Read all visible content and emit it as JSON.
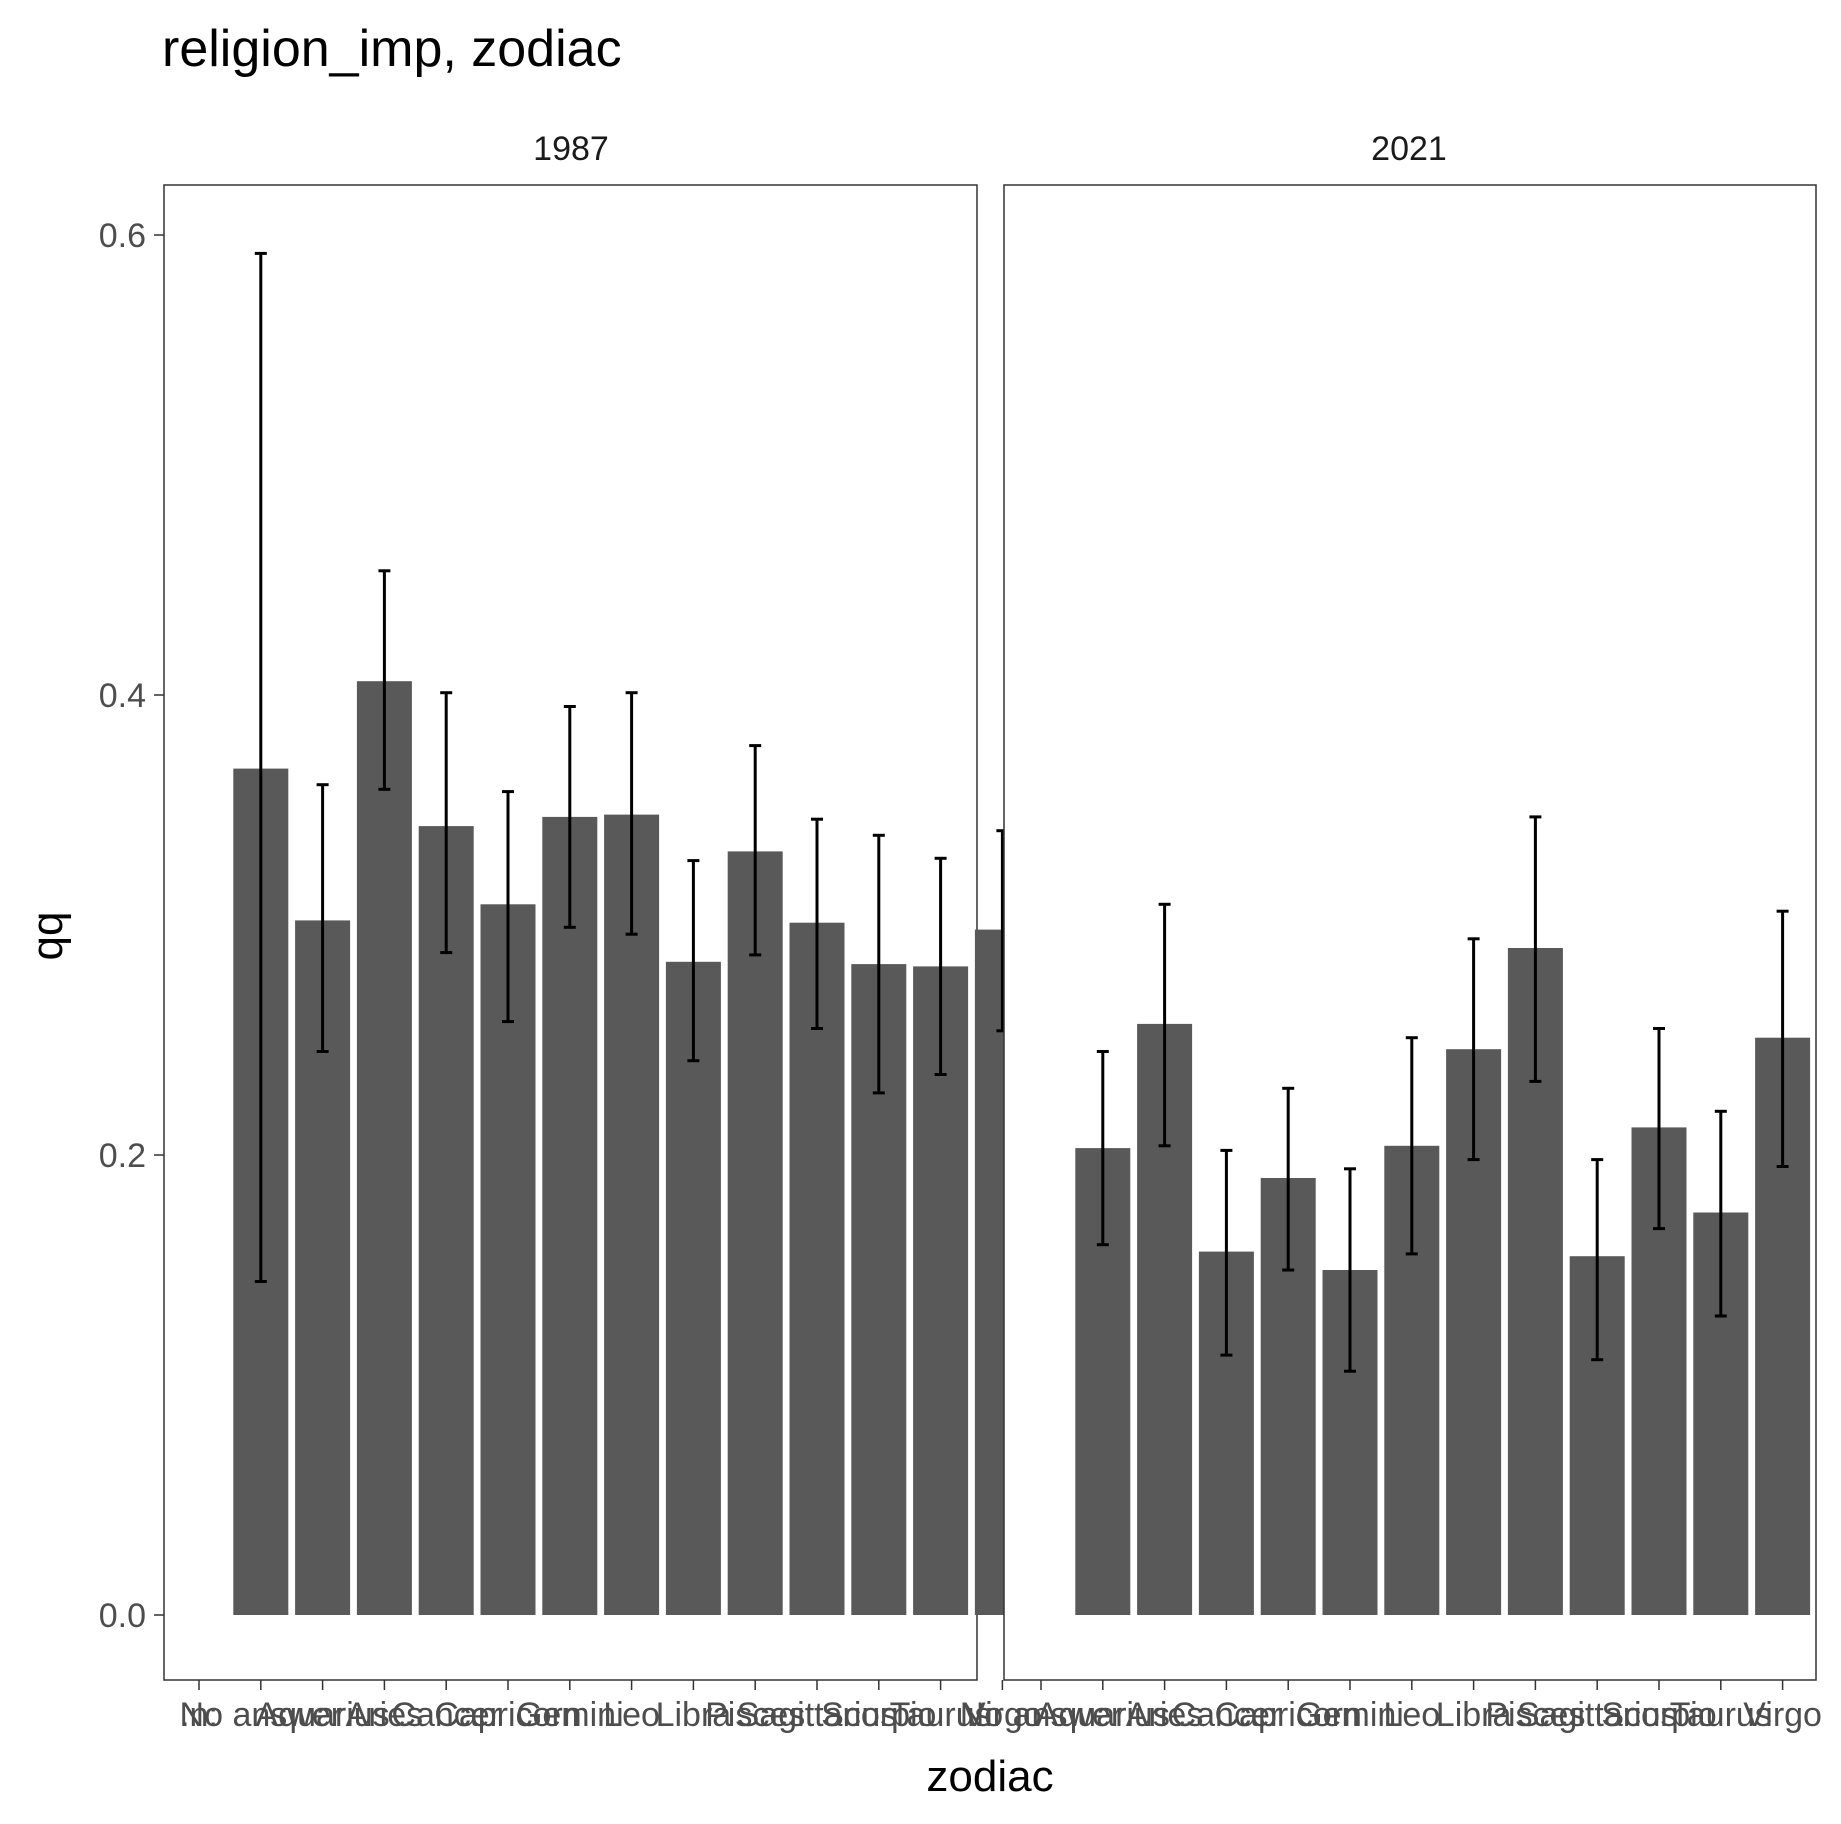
{
  "chart_data": {
    "type": "bar",
    "title": "religion_imp, zodiac",
    "xlabel": "zodiac",
    "ylabel": "qq",
    "ylim": [
      -0.03,
      0.62
    ],
    "yticks": [
      "0.0",
      "0.2",
      "0.4",
      "0.6"
    ],
    "grid": false,
    "error_bars": true,
    "bar_color": "#595959",
    "error_color": "#000000",
    "panels": [
      {
        "strip": "1987",
        "categories": [
          ".n:",
          "No answer",
          "Aquarius",
          "Aries",
          "Cancer",
          "Capricorn",
          "Gemini",
          "Leo",
          "Libra",
          "Pisces",
          "Sagittarius",
          "Scorpio",
          "Taurus",
          "Virgo"
        ],
        "values": [
          null,
          0.368,
          0.302,
          0.406,
          0.343,
          0.309,
          0.347,
          0.348,
          0.284,
          0.332,
          0.301,
          0.283,
          0.282,
          0.298
        ],
        "lower": [
          null,
          0.145,
          0.245,
          0.359,
          0.288,
          0.258,
          0.299,
          0.296,
          0.241,
          0.287,
          0.255,
          0.227,
          0.235,
          0.254
        ],
        "upper": [
          null,
          0.592,
          0.361,
          0.454,
          0.401,
          0.358,
          0.395,
          0.401,
          0.328,
          0.378,
          0.346,
          0.339,
          0.329,
          0.341
        ]
      },
      {
        "strip": "2021",
        "categories": [
          "No answer",
          "Aquarius",
          "Aries",
          "Cancer",
          "Capricorn",
          "Gemini",
          "Leo",
          "Libra",
          "Pisces",
          "Sagittarius",
          "Scorpio",
          "Taurus",
          "Virgo"
        ],
        "values": [
          null,
          0.203,
          0.257,
          0.158,
          0.19,
          0.15,
          0.204,
          0.246,
          0.29,
          0.156,
          0.212,
          0.175,
          0.251
        ],
        "lower": [
          null,
          0.161,
          0.204,
          0.113,
          0.15,
          0.106,
          0.157,
          0.198,
          0.232,
          0.111,
          0.168,
          0.13,
          0.195
        ],
        "upper": [
          null,
          0.245,
          0.309,
          0.202,
          0.229,
          0.194,
          0.251,
          0.294,
          0.347,
          0.198,
          0.255,
          0.219,
          0.306
        ]
      }
    ]
  }
}
